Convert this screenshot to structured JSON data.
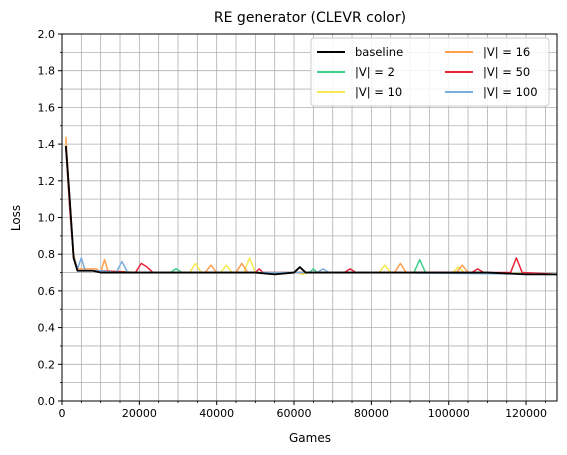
{
  "chart_data": {
    "type": "line",
    "title": "RE generator (CLEVR color)",
    "xlabel": "Games",
    "ylabel": "Loss",
    "xlim": [
      0,
      128000
    ],
    "ylim": [
      0,
      2.0
    ],
    "xticks": [
      0,
      20000,
      40000,
      60000,
      80000,
      100000,
      120000
    ],
    "xtick_labels": [
      "0",
      "20000",
      "40000",
      "60000",
      "80000",
      "100000",
      "120000"
    ],
    "yticks": [
      0,
      0.2,
      0.4,
      0.6,
      0.8,
      1.0,
      1.2,
      1.4,
      1.6,
      1.8,
      2.0
    ],
    "ytick_labels": [
      "0.0",
      "0.2",
      "0.4",
      "0.6",
      "0.8",
      "1.0",
      "1.2",
      "1.4",
      "1.6",
      "1.8",
      "2.0"
    ],
    "grid": "on (major and minor)",
    "legend_position": "top-right",
    "legend_columns": 2,
    "series": [
      {
        "name": "baseline",
        "color": "#000000",
        "points": [
          [
            1000,
            1.39
          ],
          [
            2000,
            1.1
          ],
          [
            3000,
            0.78
          ],
          [
            4000,
            0.71
          ],
          [
            6000,
            0.71
          ],
          [
            8000,
            0.71
          ],
          [
            10000,
            0.7
          ],
          [
            15000,
            0.7
          ],
          [
            20000,
            0.7
          ],
          [
            30000,
            0.7
          ],
          [
            40000,
            0.7
          ],
          [
            50000,
            0.7
          ],
          [
            55000,
            0.69
          ],
          [
            60000,
            0.7
          ],
          [
            61500,
            0.73
          ],
          [
            63000,
            0.7
          ],
          [
            70000,
            0.7
          ],
          [
            80000,
            0.7
          ],
          [
            90000,
            0.7
          ],
          [
            100000,
            0.7
          ],
          [
            110000,
            0.7
          ],
          [
            120000,
            0.69
          ],
          [
            128000,
            0.69
          ]
        ]
      },
      {
        "name": "|V| = 2",
        "color": "#3ecf8e",
        "points": [
          [
            1000,
            1.39
          ],
          [
            2000,
            1.05
          ],
          [
            3000,
            0.78
          ],
          [
            4000,
            0.71
          ],
          [
            10000,
            0.71
          ],
          [
            20000,
            0.7
          ],
          [
            28000,
            0.7
          ],
          [
            29500,
            0.72
          ],
          [
            31000,
            0.7
          ],
          [
            50000,
            0.7
          ],
          [
            64000,
            0.7
          ],
          [
            65000,
            0.72
          ],
          [
            66000,
            0.7
          ],
          [
            91000,
            0.7
          ],
          [
            92500,
            0.77
          ],
          [
            94000,
            0.7
          ],
          [
            110000,
            0.7
          ],
          [
            128000,
            0.69
          ]
        ]
      },
      {
        "name": "|V| = 10",
        "color": "#f5e94f",
        "points": [
          [
            1000,
            1.42
          ],
          [
            2000,
            1.1
          ],
          [
            3000,
            0.8
          ],
          [
            4000,
            0.71
          ],
          [
            10000,
            0.71
          ],
          [
            20000,
            0.7
          ],
          [
            33000,
            0.7
          ],
          [
            34500,
            0.75
          ],
          [
            36000,
            0.7
          ],
          [
            41000,
            0.7
          ],
          [
            42500,
            0.74
          ],
          [
            44000,
            0.7
          ],
          [
            47000,
            0.7
          ],
          [
            48500,
            0.78
          ],
          [
            50000,
            0.7
          ],
          [
            61000,
            0.7
          ],
          [
            62000,
            0.69
          ],
          [
            64000,
            0.7
          ],
          [
            82000,
            0.7
          ],
          [
            83500,
            0.74
          ],
          [
            85000,
            0.7
          ],
          [
            101000,
            0.7
          ],
          [
            102500,
            0.73
          ],
          [
            104000,
            0.7
          ],
          [
            128000,
            0.69
          ]
        ]
      },
      {
        "name": "|V| = 16",
        "color": "#ff9f4f",
        "points": [
          [
            1000,
            1.44
          ],
          [
            2000,
            1.1
          ],
          [
            3000,
            0.8
          ],
          [
            4000,
            0.72
          ],
          [
            9000,
            0.72
          ],
          [
            10000,
            0.7
          ],
          [
            11000,
            0.77
          ],
          [
            12000,
            0.7
          ],
          [
            37000,
            0.7
          ],
          [
            38500,
            0.74
          ],
          [
            40000,
            0.7
          ],
          [
            45000,
            0.7
          ],
          [
            46500,
            0.75
          ],
          [
            48000,
            0.7
          ],
          [
            86000,
            0.7
          ],
          [
            87500,
            0.75
          ],
          [
            89000,
            0.7
          ],
          [
            102000,
            0.7
          ],
          [
            103500,
            0.74
          ],
          [
            105000,
            0.7
          ],
          [
            128000,
            0.69
          ]
        ]
      },
      {
        "name": "|V| = 50",
        "color": "#e8253b",
        "points": [
          [
            1000,
            1.38
          ],
          [
            2000,
            1.05
          ],
          [
            3000,
            0.78
          ],
          [
            4000,
            0.71
          ],
          [
            10000,
            0.71
          ],
          [
            19000,
            0.7
          ],
          [
            20500,
            0.75
          ],
          [
            22000,
            0.73
          ],
          [
            23500,
            0.7
          ],
          [
            50000,
            0.7
          ],
          [
            51000,
            0.72
          ],
          [
            52000,
            0.7
          ],
          [
            73000,
            0.7
          ],
          [
            74500,
            0.72
          ],
          [
            76000,
            0.7
          ],
          [
            106000,
            0.7
          ],
          [
            107500,
            0.72
          ],
          [
            109000,
            0.7
          ],
          [
            116000,
            0.7
          ],
          [
            117500,
            0.78
          ],
          [
            119000,
            0.7
          ],
          [
            128000,
            0.69
          ]
        ]
      },
      {
        "name": "|V| = 100",
        "color": "#7aaedc",
        "points": [
          [
            1000,
            1.39
          ],
          [
            2000,
            1.1
          ],
          [
            3000,
            0.79
          ],
          [
            4000,
            0.72
          ],
          [
            5000,
            0.78
          ],
          [
            6000,
            0.71
          ],
          [
            10000,
            0.71
          ],
          [
            14000,
            0.7
          ],
          [
            15500,
            0.76
          ],
          [
            17000,
            0.7
          ],
          [
            60000,
            0.7
          ],
          [
            66000,
            0.7
          ],
          [
            67500,
            0.72
          ],
          [
            69000,
            0.7
          ],
          [
            80000,
            0.7
          ],
          [
            128000,
            0.69
          ]
        ]
      }
    ]
  }
}
